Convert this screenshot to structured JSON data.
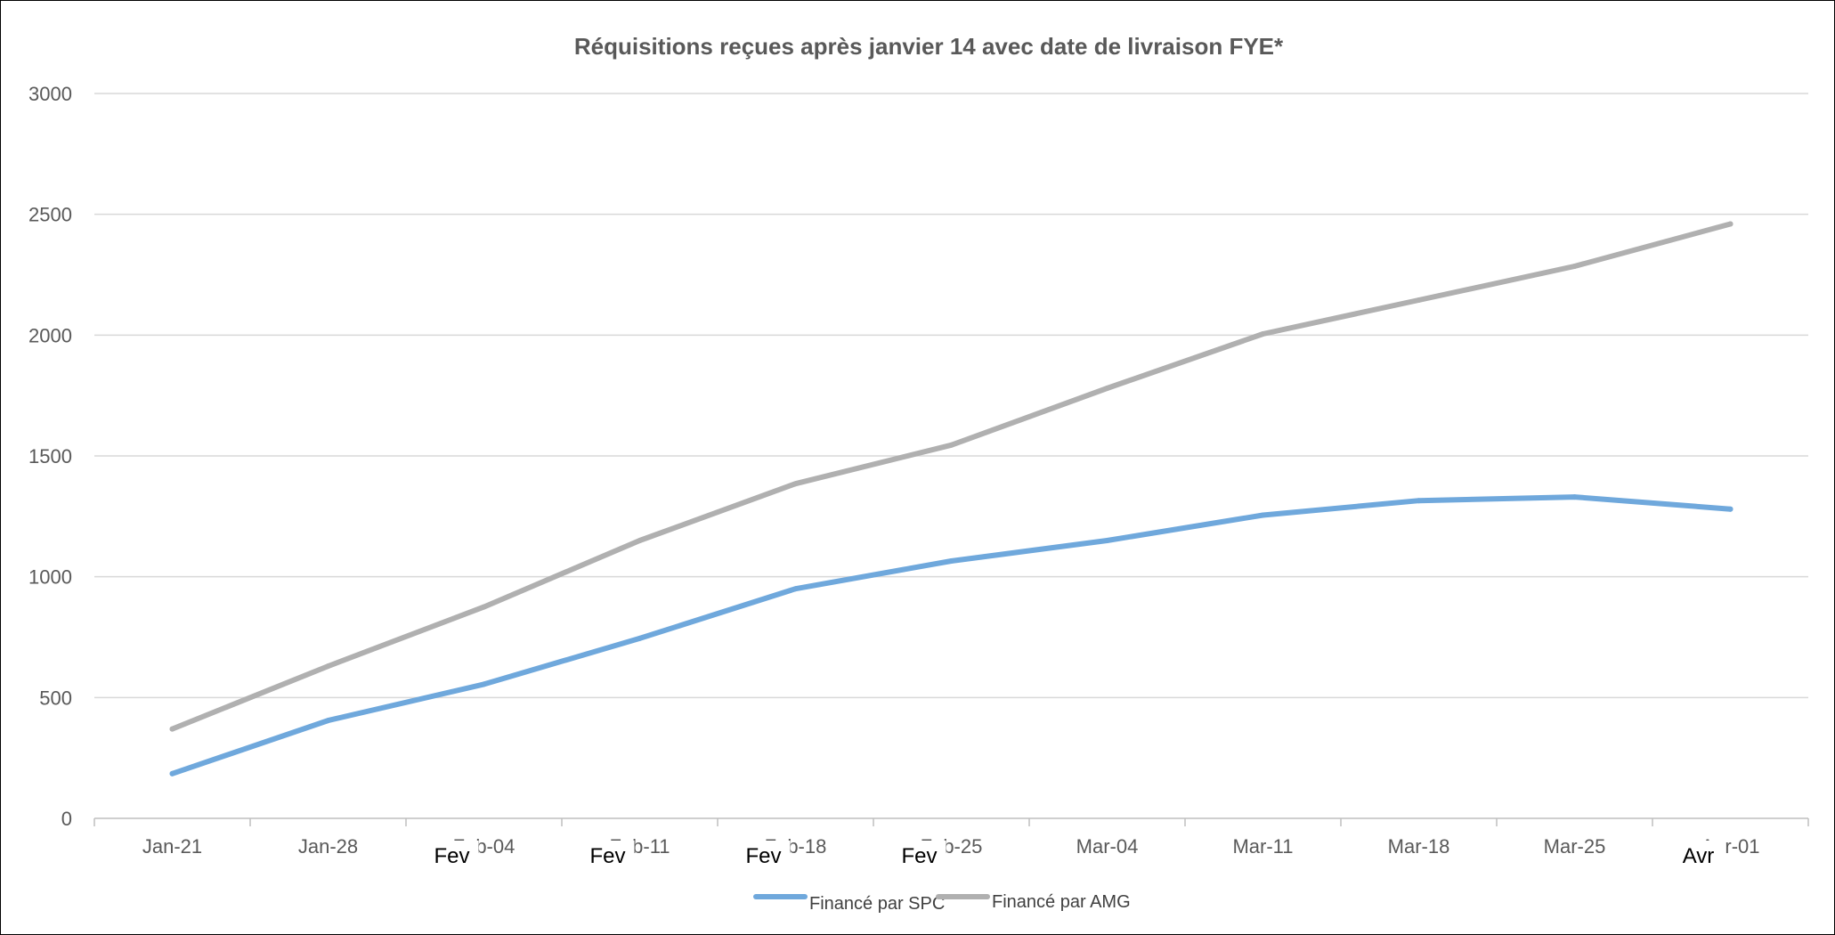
{
  "chart_data": {
    "type": "line",
    "title": "Réquisitions reçues après janvier 14 avec date de livraison FYE*",
    "xlabel": "",
    "ylabel": "",
    "categories": [
      "Jan-21",
      "Jan-28",
      "Feb-04",
      "Feb-11",
      "Feb-18",
      "Feb-25",
      "Mar-04",
      "Mar-11",
      "Mar-18",
      "Mar-25",
      "Apr-01"
    ],
    "category_overlays": [
      "",
      "",
      "Fev",
      "Fev",
      "Fev",
      "Fev",
      "",
      "",
      "",
      "",
      "Avr"
    ],
    "y_ticks": [
      "0",
      "500",
      "1000",
      "1500",
      "2000",
      "2500",
      "3000"
    ],
    "ylim": [
      0,
      3000
    ],
    "grid": true,
    "legend_position": "bottom",
    "series": [
      {
        "name": "Financé par SPC",
        "color": "#6FA8DC",
        "values": [
          185,
          405,
          555,
          745,
          950,
          1065,
          1150,
          1255,
          1315,
          1330,
          1280
        ]
      },
      {
        "name": "Financé par AMG",
        "color": "#B0B0B0",
        "values": [
          370,
          630,
          875,
          1150,
          1385,
          1545,
          1780,
          2005,
          2145,
          2285,
          2460
        ]
      }
    ]
  }
}
